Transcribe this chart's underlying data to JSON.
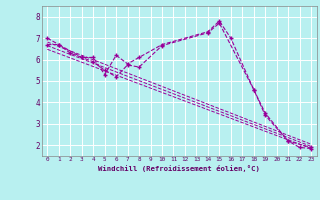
{
  "xlabel": "Windchill (Refroidissement éolien,°C)",
  "bg_color": "#b8f0f0",
  "line_color": "#990099",
  "curve1_x": [
    0,
    1,
    2,
    3,
    4,
    5,
    6,
    7,
    8,
    10,
    14,
    15,
    16,
    18,
    19,
    21,
    22,
    23
  ],
  "curve1_y": [
    7.0,
    6.7,
    6.3,
    6.1,
    6.1,
    5.3,
    6.2,
    5.8,
    6.1,
    6.7,
    7.3,
    7.8,
    7.0,
    4.6,
    3.5,
    2.2,
    1.9,
    1.85
  ],
  "curve2_x": [
    0,
    1,
    3,
    4,
    5,
    6,
    7,
    8,
    10,
    14,
    15,
    18,
    19,
    21,
    23
  ],
  "curve2_y": [
    6.7,
    6.7,
    6.1,
    5.9,
    5.5,
    5.2,
    5.75,
    5.65,
    6.65,
    7.25,
    7.7,
    4.6,
    3.4,
    2.2,
    1.9
  ],
  "linear_lines": [
    [
      0,
      6.82,
      23,
      2.05
    ],
    [
      0,
      6.65,
      23,
      1.95
    ],
    [
      0,
      6.48,
      23,
      1.85
    ]
  ],
  "ylim": [
    1.5,
    8.5
  ],
  "xlim": [
    -0.5,
    23.5
  ],
  "yticks": [
    2,
    3,
    4,
    5,
    6,
    7,
    8
  ],
  "xticks": [
    0,
    1,
    2,
    3,
    4,
    5,
    6,
    7,
    8,
    9,
    10,
    11,
    12,
    13,
    14,
    15,
    16,
    17,
    18,
    19,
    20,
    21,
    22,
    23
  ]
}
